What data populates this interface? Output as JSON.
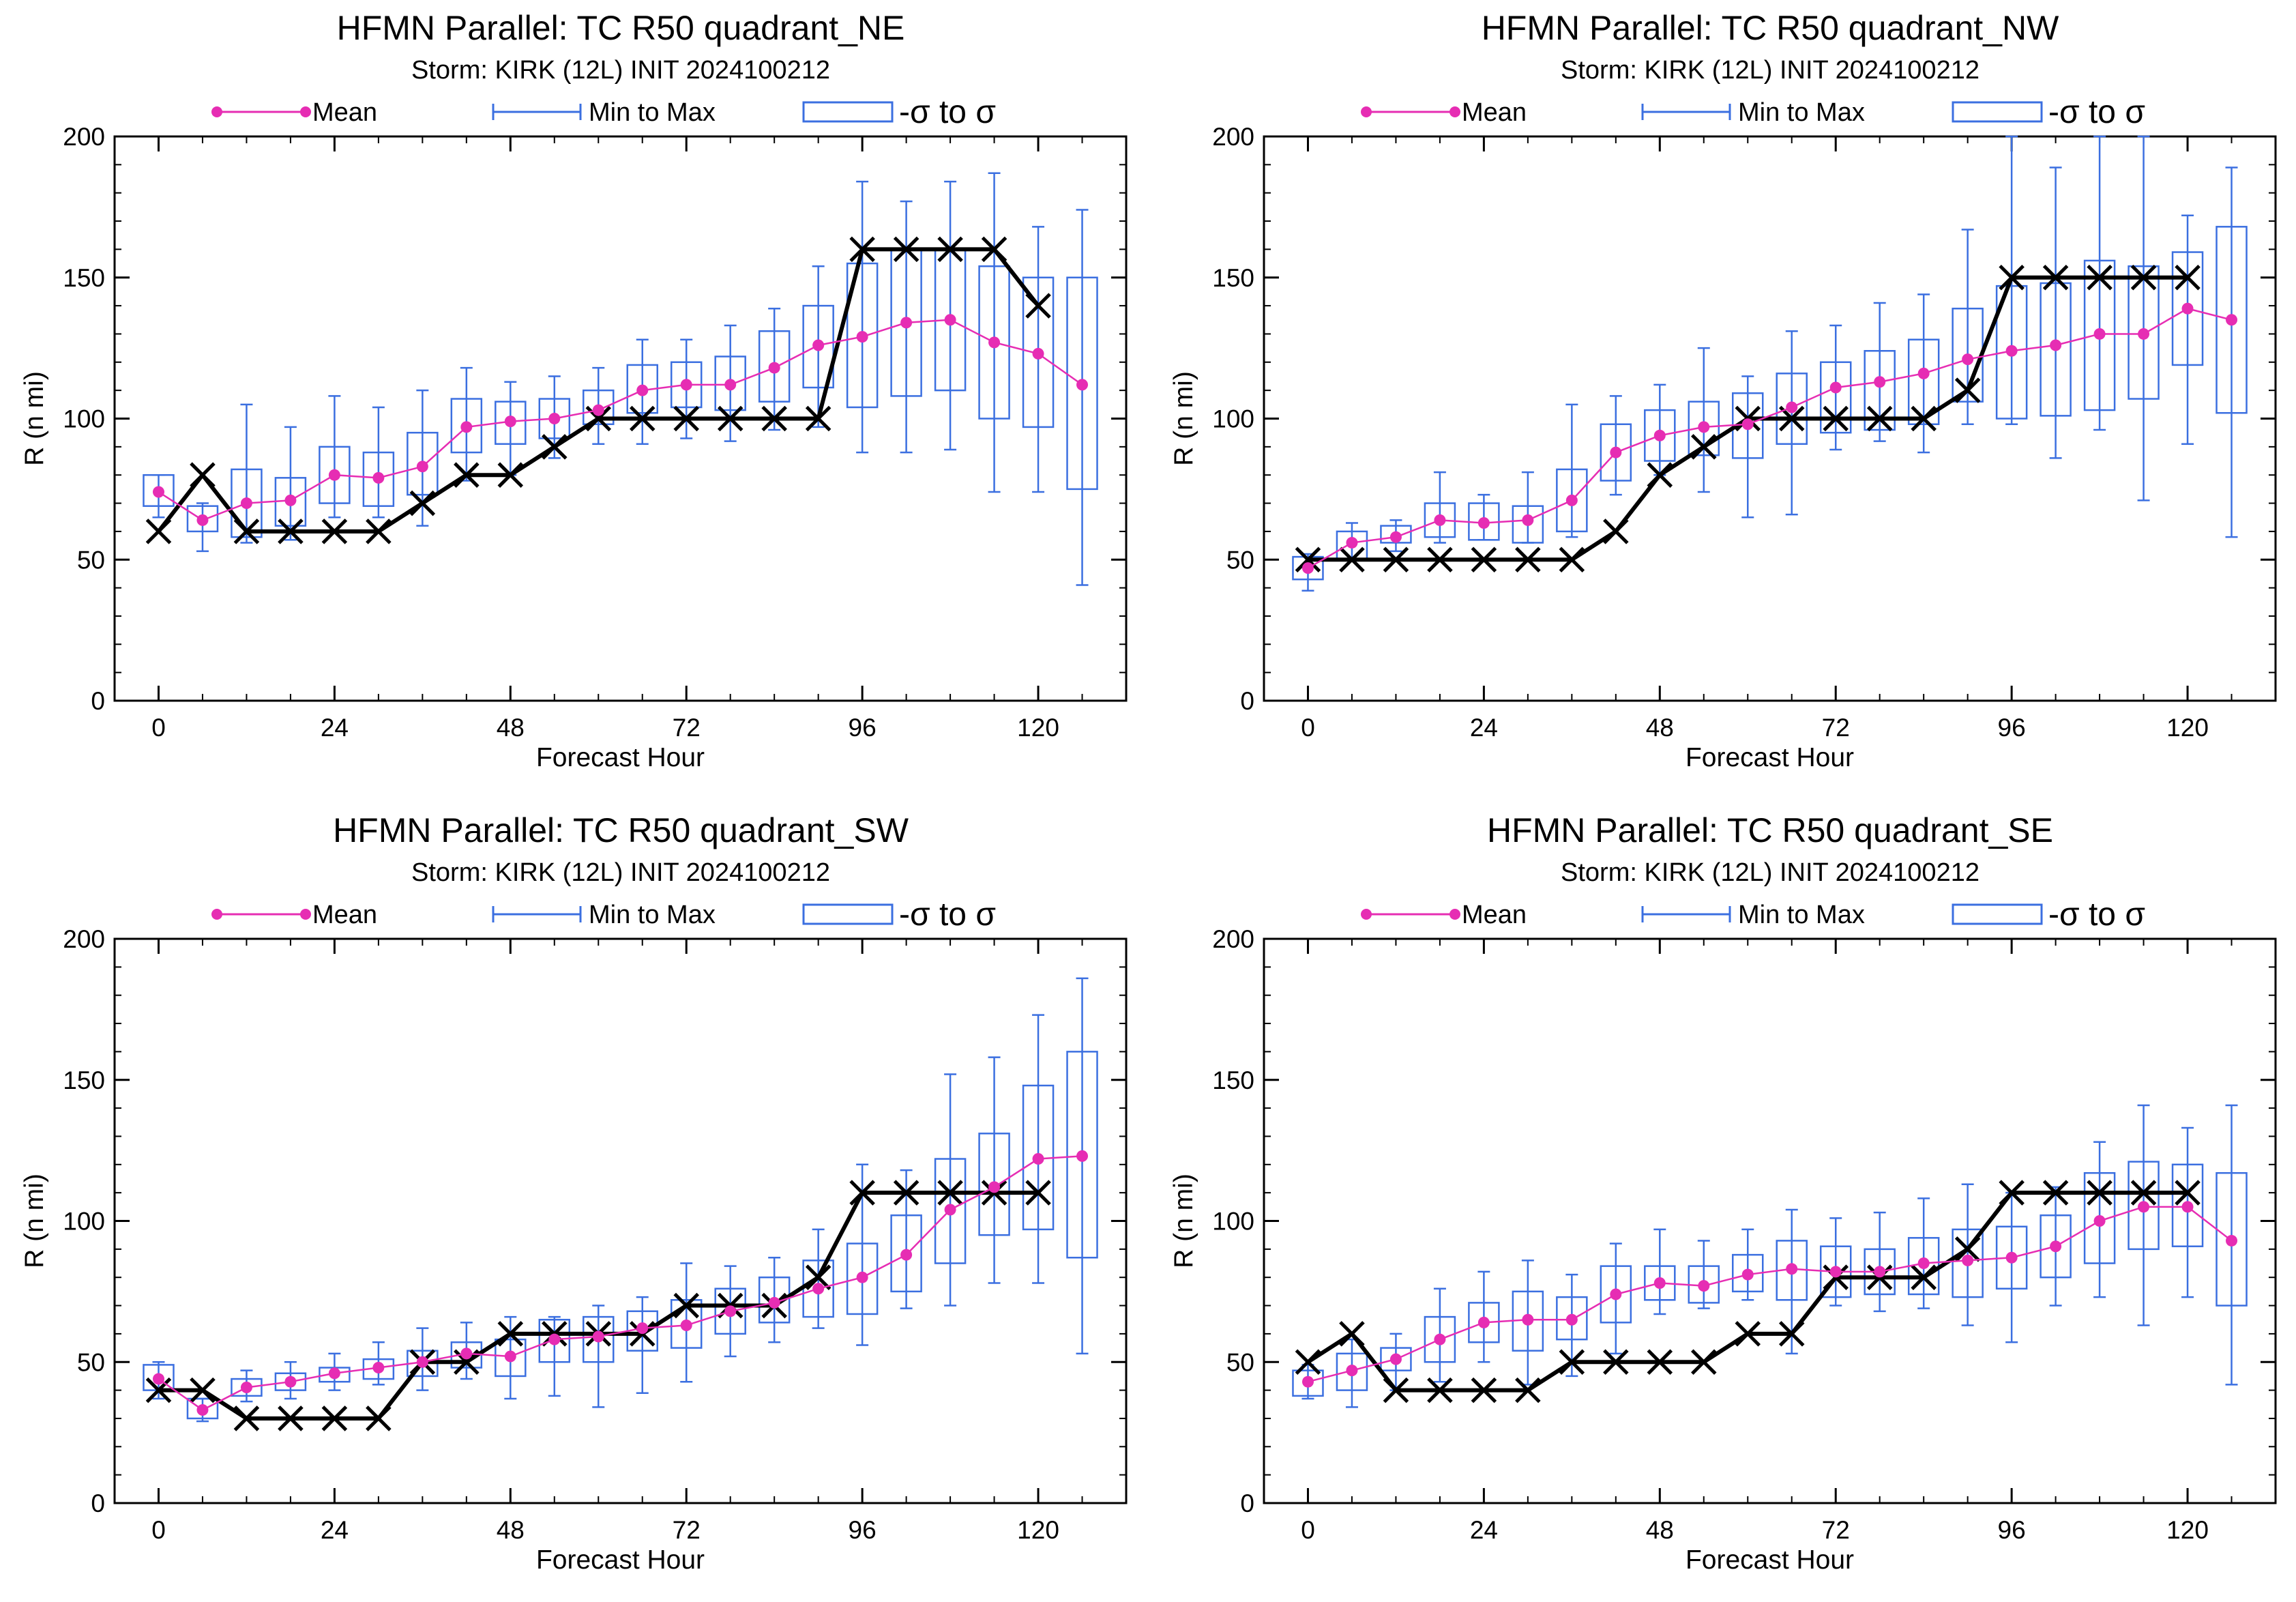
{
  "colors": {
    "mean": "#e62db3",
    "range": "#3b6fe0",
    "observed": "#000000",
    "frame": "#000000"
  },
  "legend": {
    "mean": "Mean",
    "range": "Min to Max",
    "sigma": "-σ to σ"
  },
  "chart_data": [
    {
      "type": "line",
      "title": "HFMN Parallel: TC  R50 quadrant_NE",
      "subtitle": "Storm: KIRK (12L) INIT 2024100212",
      "xlabel": "Forecast Hour",
      "ylabel": "R (n mi)",
      "xlim": [
        -6,
        132
      ],
      "ylim": [
        0,
        200
      ],
      "xticks": [
        0,
        24,
        48,
        72,
        96,
        120
      ],
      "yticks": [
        0,
        50,
        100,
        150,
        200
      ],
      "x": [
        0,
        6,
        12,
        18,
        24,
        30,
        36,
        42,
        48,
        54,
        60,
        66,
        72,
        78,
        84,
        90,
        96,
        102,
        108,
        114,
        120,
        126
      ],
      "mean": [
        74,
        64,
        70,
        71,
        80,
        79,
        83,
        97,
        99,
        100,
        103,
        110,
        112,
        112,
        118,
        126,
        129,
        134,
        135,
        127,
        123,
        112
      ],
      "min": [
        65,
        53,
        56,
        57,
        65,
        65,
        62,
        78,
        80,
        86,
        91,
        91,
        93,
        92,
        96,
        97,
        88,
        88,
        89,
        74,
        74,
        41
      ],
      "max": [
        80,
        70,
        105,
        97,
        108,
        104,
        110,
        118,
        113,
        115,
        118,
        128,
        128,
        133,
        139,
        154,
        184,
        177,
        184,
        187,
        168,
        174
      ],
      "sd_low": [
        69,
        60,
        58,
        62,
        70,
        69,
        73,
        88,
        91,
        93,
        98,
        102,
        104,
        103,
        106,
        111,
        104,
        108,
        110,
        100,
        97,
        75
      ],
      "sd_high": [
        80,
        69,
        82,
        79,
        90,
        88,
        95,
        107,
        106,
        107,
        110,
        119,
        120,
        122,
        131,
        140,
        155,
        160,
        160,
        154,
        150,
        150
      ],
      "observed_x": [
        0,
        6,
        12,
        18,
        24,
        30,
        36,
        42,
        48,
        54,
        60,
        66,
        72,
        78,
        84,
        90,
        96,
        102,
        108,
        114,
        120
      ],
      "observed": [
        60,
        80,
        60,
        60,
        60,
        60,
        70,
        80,
        80,
        90,
        100,
        100,
        100,
        100,
        100,
        100,
        160,
        160,
        160,
        160,
        140
      ]
    },
    {
      "type": "line",
      "title": "HFMN Parallel: TC  R50 quadrant_NW",
      "subtitle": "Storm: KIRK (12L) INIT 2024100212",
      "xlabel": "Forecast Hour",
      "ylabel": "R (n mi)",
      "xlim": [
        -6,
        132
      ],
      "ylim": [
        0,
        200
      ],
      "xticks": [
        0,
        24,
        48,
        72,
        96,
        120
      ],
      "yticks": [
        0,
        50,
        100,
        150,
        200
      ],
      "x": [
        0,
        6,
        12,
        18,
        24,
        30,
        36,
        42,
        48,
        54,
        60,
        66,
        72,
        78,
        84,
        90,
        96,
        102,
        108,
        114,
        120,
        126
      ],
      "mean": [
        47,
        56,
        58,
        64,
        63,
        64,
        71,
        88,
        94,
        97,
        98,
        104,
        111,
        113,
        116,
        121,
        124,
        126,
        130,
        130,
        139,
        135
      ],
      "min": [
        39,
        50,
        53,
        56,
        57,
        56,
        58,
        73,
        80,
        74,
        65,
        66,
        89,
        92,
        88,
        98,
        98,
        86,
        96,
        71,
        91,
        58
      ],
      "max": [
        52,
        63,
        64,
        81,
        73,
        81,
        105,
        108,
        112,
        125,
        115,
        131,
        133,
        141,
        144,
        167,
        200,
        189,
        200,
        200,
        172,
        189
      ],
      "sd_low": [
        43,
        50,
        56,
        58,
        57,
        56,
        60,
        78,
        85,
        87,
        86,
        91,
        95,
        96,
        98,
        106,
        100,
        101,
        103,
        107,
        119,
        102
      ],
      "sd_high": [
        51,
        60,
        62,
        70,
        70,
        69,
        82,
        98,
        103,
        106,
        109,
        116,
        120,
        124,
        128,
        139,
        147,
        148,
        156,
        154,
        159,
        168
      ],
      "observed_x": [
        0,
        6,
        12,
        18,
        24,
        30,
        36,
        42,
        48,
        54,
        60,
        66,
        72,
        78,
        84,
        90,
        96,
        102,
        108,
        114,
        120
      ],
      "observed": [
        50,
        50,
        50,
        50,
        50,
        50,
        50,
        60,
        80,
        90,
        100,
        100,
        100,
        100,
        100,
        110,
        150,
        150,
        150,
        150,
        150
      ]
    },
    {
      "type": "line",
      "title": "HFMN Parallel: TC  R50 quadrant_SW",
      "subtitle": "Storm: KIRK (12L) INIT 2024100212",
      "xlabel": "Forecast Hour",
      "ylabel": "R (n mi)",
      "xlim": [
        -6,
        132
      ],
      "ylim": [
        0,
        200
      ],
      "xticks": [
        0,
        24,
        48,
        72,
        96,
        120
      ],
      "yticks": [
        0,
        50,
        100,
        150,
        200
      ],
      "x": [
        0,
        6,
        12,
        18,
        24,
        30,
        36,
        42,
        48,
        54,
        60,
        66,
        72,
        78,
        84,
        90,
        96,
        102,
        108,
        114,
        120,
        126
      ],
      "mean": [
        44,
        33,
        41,
        43,
        46,
        48,
        50,
        53,
        52,
        58,
        59,
        62,
        63,
        68,
        71,
        76,
        80,
        88,
        104,
        112,
        122,
        123
      ],
      "min": [
        37,
        29,
        36,
        37,
        40,
        42,
        40,
        44,
        37,
        38,
        34,
        39,
        43,
        52,
        57,
        62,
        56,
        69,
        70,
        78,
        78,
        53
      ],
      "max": [
        50,
        37,
        47,
        50,
        53,
        57,
        62,
        64,
        66,
        66,
        70,
        73,
        85,
        84,
        87,
        97,
        120,
        118,
        152,
        158,
        173,
        186
      ],
      "sd_low": [
        40,
        30,
        38,
        40,
        43,
        44,
        45,
        48,
        45,
        50,
        50,
        54,
        55,
        60,
        64,
        66,
        67,
        75,
        85,
        95,
        97,
        87
      ],
      "sd_high": [
        49,
        37,
        44,
        46,
        48,
        51,
        54,
        57,
        58,
        65,
        66,
        68,
        72,
        76,
        80,
        86,
        92,
        102,
        122,
        131,
        148,
        160
      ],
      "observed_x": [
        0,
        6,
        12,
        18,
        24,
        30,
        36,
        42,
        48,
        54,
        60,
        66,
        72,
        78,
        84,
        90,
        96,
        102,
        108,
        114,
        120
      ],
      "observed": [
        40,
        40,
        30,
        30,
        30,
        30,
        50,
        50,
        60,
        60,
        60,
        60,
        70,
        70,
        70,
        80,
        110,
        110,
        110,
        110,
        110
      ]
    },
    {
      "type": "line",
      "title": "HFMN Parallel: TC  R50 quadrant_SE",
      "subtitle": "Storm: KIRK (12L) INIT 2024100212",
      "xlabel": "Forecast Hour",
      "ylabel": "R (n mi)",
      "xlim": [
        -6,
        132
      ],
      "ylim": [
        0,
        200
      ],
      "xticks": [
        0,
        24,
        48,
        72,
        96,
        120
      ],
      "yticks": [
        0,
        50,
        100,
        150,
        200
      ],
      "x": [
        0,
        6,
        12,
        18,
        24,
        30,
        36,
        42,
        48,
        54,
        60,
        66,
        72,
        78,
        84,
        90,
        96,
        102,
        108,
        114,
        120,
        126
      ],
      "mean": [
        43,
        47,
        51,
        58,
        64,
        65,
        65,
        74,
        78,
        77,
        81,
        83,
        82,
        82,
        85,
        86,
        87,
        91,
        100,
        105,
        105,
        93
      ],
      "min": [
        37,
        34,
        40,
        43,
        50,
        42,
        45,
        53,
        67,
        69,
        72,
        53,
        70,
        68,
        69,
        63,
        57,
        70,
        73,
        63,
        73,
        42
      ],
      "max": [
        49,
        58,
        60,
        76,
        82,
        86,
        81,
        92,
        97,
        93,
        97,
        104,
        101,
        103,
        108,
        113,
        110,
        112,
        128,
        141,
        133,
        141
      ],
      "sd_low": [
        38,
        40,
        47,
        50,
        57,
        54,
        58,
        64,
        72,
        71,
        75,
        72,
        73,
        74,
        74,
        73,
        76,
        80,
        85,
        90,
        91,
        70
      ],
      "sd_high": [
        47,
        53,
        55,
        66,
        71,
        75,
        73,
        84,
        84,
        84,
        88,
        93,
        91,
        90,
        94,
        97,
        98,
        102,
        117,
        121,
        120,
        117
      ],
      "observed_x": [
        0,
        6,
        12,
        18,
        24,
        30,
        36,
        42,
        48,
        54,
        60,
        66,
        72,
        78,
        84,
        90,
        96,
        102,
        108,
        114,
        120
      ],
      "observed": [
        50,
        60,
        40,
        40,
        40,
        40,
        50,
        50,
        50,
        50,
        60,
        60,
        80,
        80,
        80,
        90,
        110,
        110,
        110,
        110,
        110
      ]
    }
  ]
}
